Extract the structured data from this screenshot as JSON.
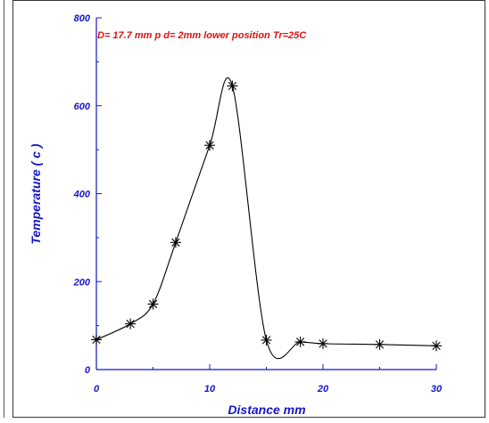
{
  "colors": {
    "axis": "#1515cc",
    "annotation": "#dd1111",
    "series": "#000000",
    "frame": "#333333"
  },
  "chart_data": {
    "type": "line",
    "title": "",
    "xlabel": "Distance  mm",
    "ylabel": "Temperature  ( c )",
    "annotation": "D= 17.7 mm    p d= 2mm   lower position Tr=25C",
    "xlim": [
      0,
      30
    ],
    "ylim": [
      0,
      800
    ],
    "x_ticks": [
      0,
      10,
      20,
      30
    ],
    "y_ticks": [
      0,
      200,
      400,
      600,
      800
    ],
    "marker": "asterisk",
    "grid": false,
    "series": [
      {
        "x": [
          0,
          3,
          5,
          7,
          10,
          12,
          15,
          18,
          20,
          25,
          30
        ],
        "y": [
          68,
          104,
          149,
          289,
          510,
          645,
          67,
          63,
          59,
          57,
          54
        ]
      }
    ]
  }
}
